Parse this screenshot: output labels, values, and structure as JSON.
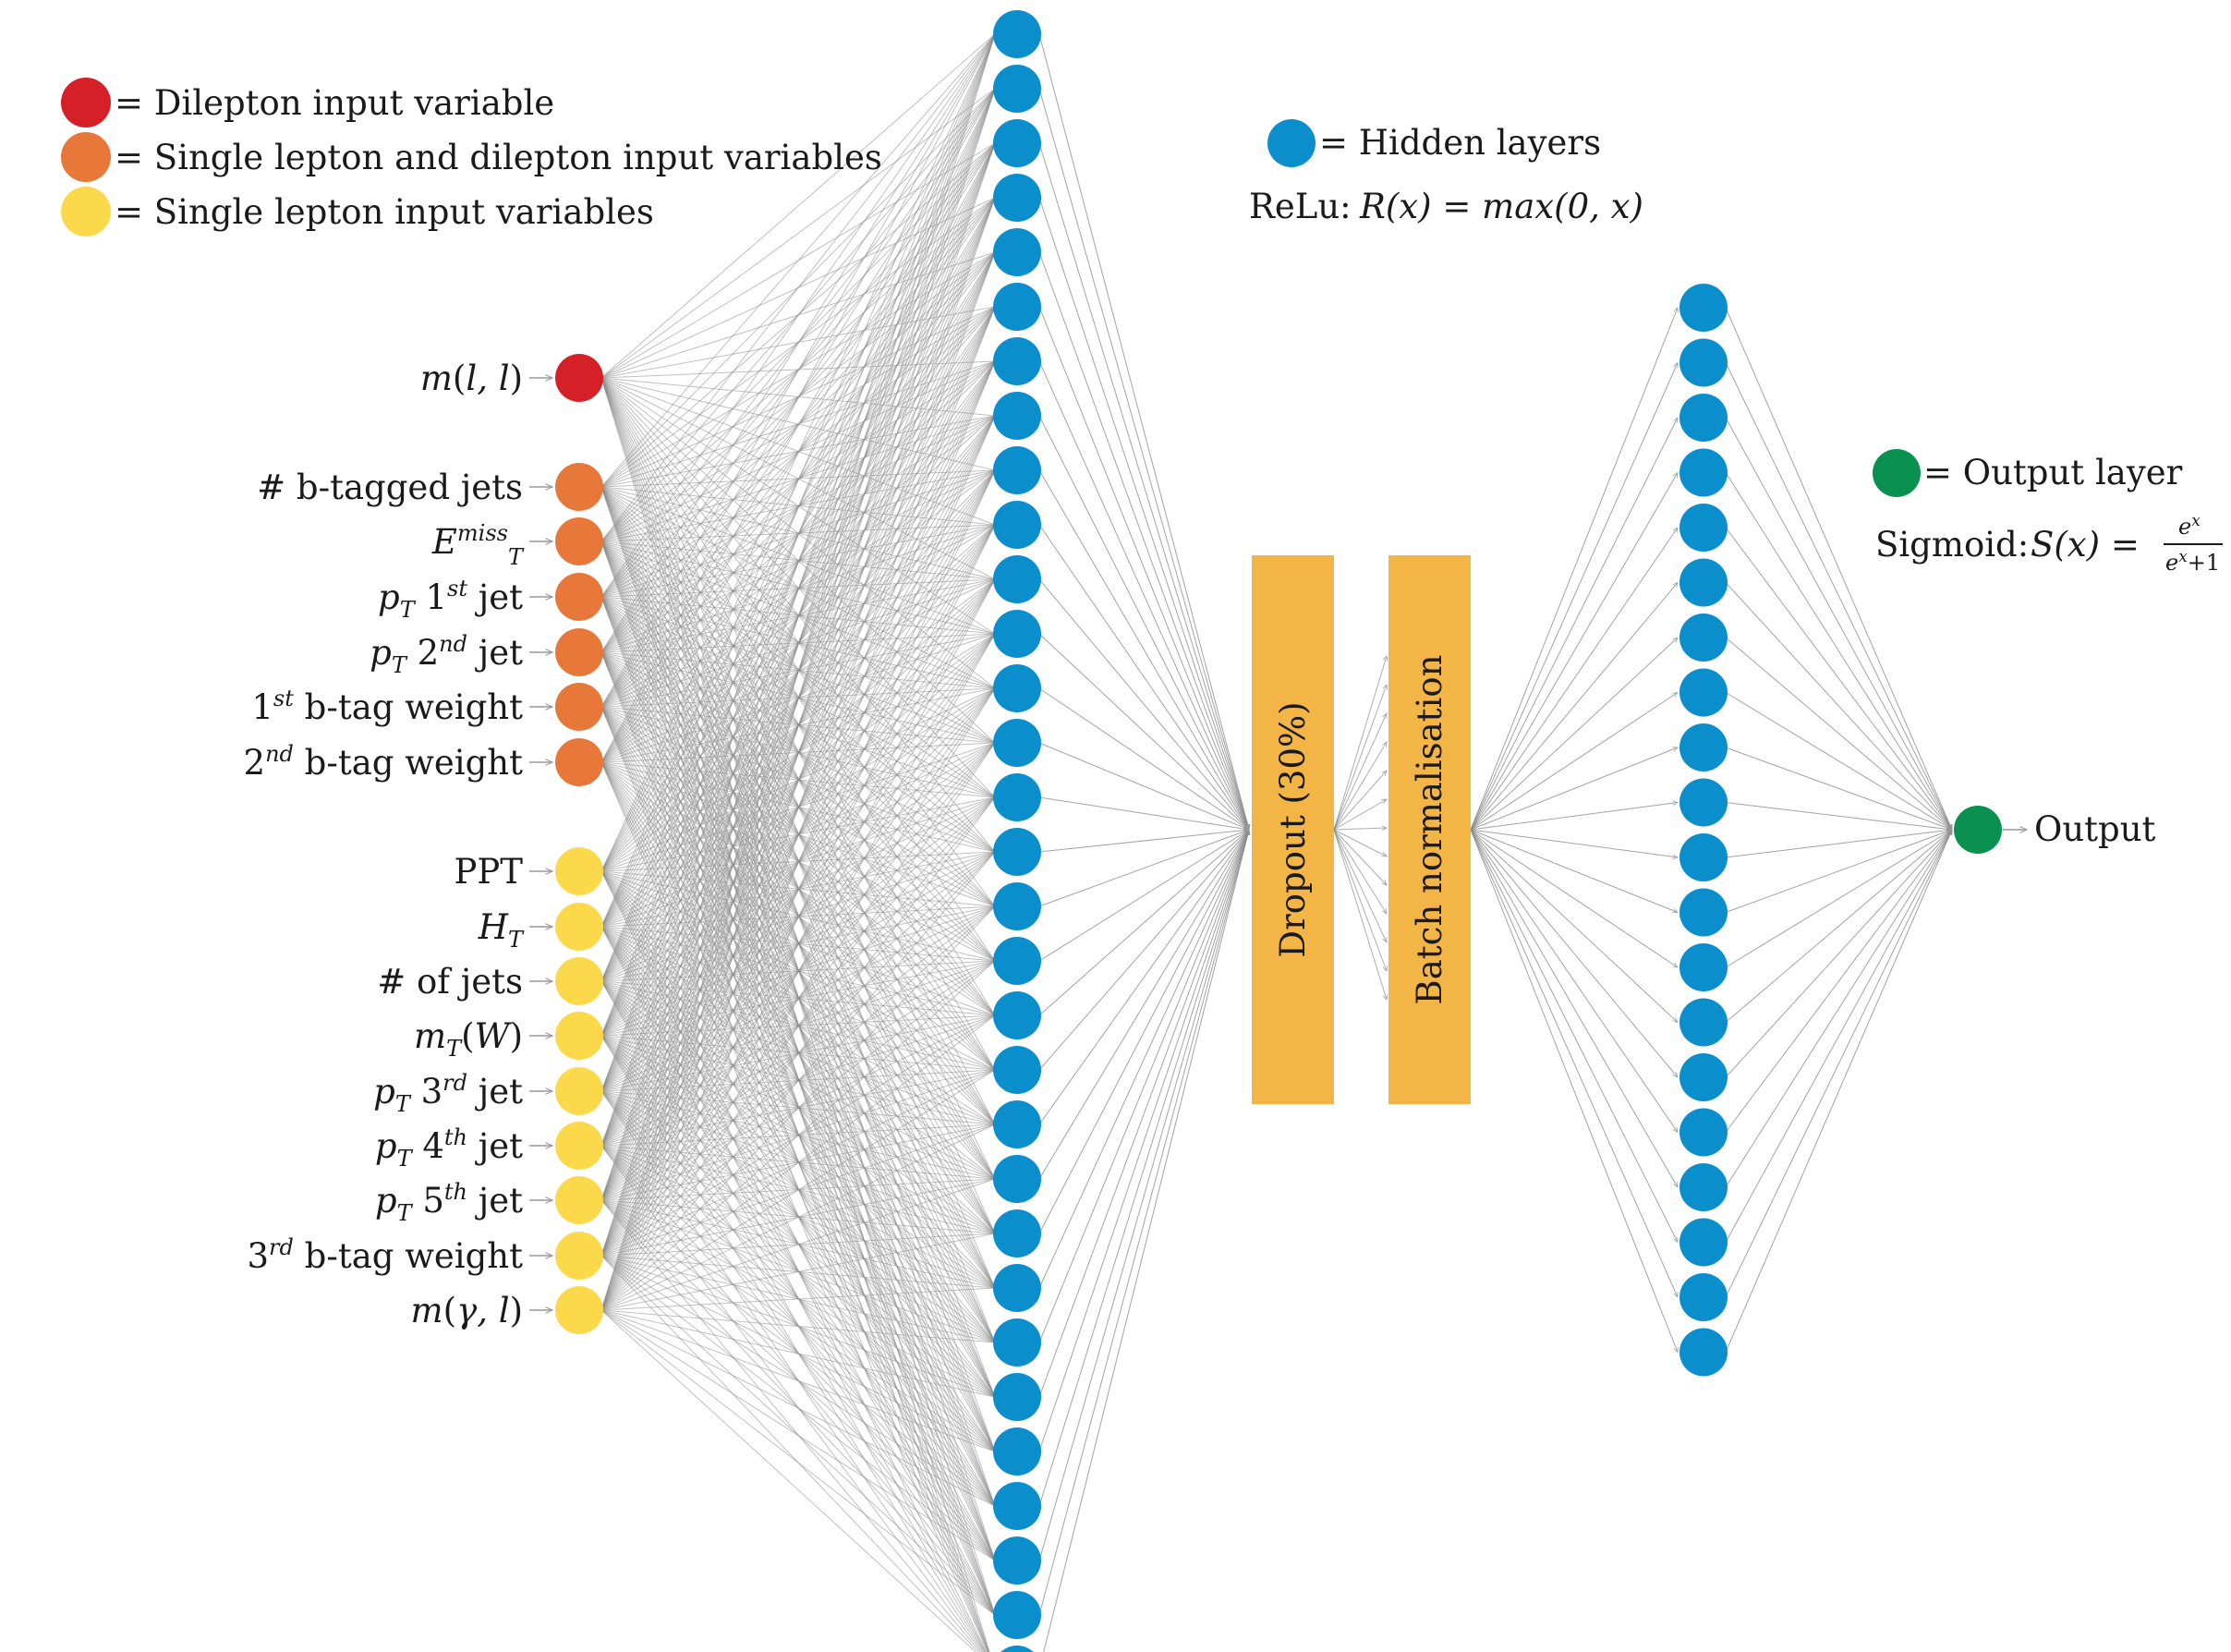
{
  "legend": {
    "dilepton": "= Dilepton input variable",
    "both": "= Single lepton and dilepton input variables",
    "single": "= Single lepton input variables",
    "hidden": "= Hidden layers",
    "relu_label": "ReLu:",
    "relu_formula": "R(x) = max(0, x)",
    "output_layer": "= Output layer",
    "sigmoid_label": "Sigmoid:",
    "sigmoid_lhs": "S(x) =",
    "sigmoid_num": "e",
    "sigmoid_num_sup": "x",
    "sigmoid_den": "e",
    "sigmoid_den_sup": "x",
    "sigmoid_den_tail": "+1"
  },
  "inputs": [
    {
      "parts": [
        {
          "t": "m",
          "s": "i"
        },
        {
          "t": "(",
          "s": ""
        },
        {
          "t": "l, l",
          "s": "i"
        },
        {
          "t": ")",
          "s": ""
        }
      ],
      "group": "dilepton"
    },
    {
      "parts": [
        {
          "t": "# b-tagged jets",
          "s": ""
        }
      ],
      "group": "both"
    },
    {
      "parts": [
        {
          "t": "E",
          "s": "i"
        },
        {
          "t": "miss",
          "s": "i sup"
        },
        {
          "t": "T",
          "s": "i subx"
        }
      ],
      "group": "both"
    },
    {
      "parts": [
        {
          "t": "p",
          "s": "i"
        },
        {
          "t": "T",
          "s": "i sub"
        },
        {
          "t": " 1",
          "s": ""
        },
        {
          "t": "st",
          "s": "i sup"
        },
        {
          "t": " jet",
          "s": ""
        }
      ],
      "group": "both"
    },
    {
      "parts": [
        {
          "t": "p",
          "s": "i"
        },
        {
          "t": "T",
          "s": "i sub"
        },
        {
          "t": " 2",
          "s": ""
        },
        {
          "t": "nd",
          "s": "i sup"
        },
        {
          "t": " jet",
          "s": ""
        }
      ],
      "group": "both"
    },
    {
      "parts": [
        {
          "t": "1",
          "s": ""
        },
        {
          "t": "st",
          "s": "i sup"
        },
        {
          "t": " b-tag weight",
          "s": ""
        }
      ],
      "group": "both"
    },
    {
      "parts": [
        {
          "t": "2",
          "s": ""
        },
        {
          "t": "nd",
          "s": "i sup"
        },
        {
          "t": " b-tag weight",
          "s": ""
        }
      ],
      "group": "both"
    },
    {
      "parts": [
        {
          "t": "PPT",
          "s": ""
        }
      ],
      "group": "single"
    },
    {
      "parts": [
        {
          "t": "H",
          "s": "i"
        },
        {
          "t": "T",
          "s": "i sub"
        }
      ],
      "group": "single"
    },
    {
      "parts": [
        {
          "t": "# of jets",
          "s": ""
        }
      ],
      "group": "single"
    },
    {
      "parts": [
        {
          "t": "m",
          "s": "i"
        },
        {
          "t": "T",
          "s": "i sub"
        },
        {
          "t": "(",
          "s": ""
        },
        {
          "t": "W",
          "s": "i"
        },
        {
          "t": ")",
          "s": ""
        }
      ],
      "group": "single"
    },
    {
      "parts": [
        {
          "t": "p",
          "s": "i"
        },
        {
          "t": "T",
          "s": "i sub"
        },
        {
          "t": " 3",
          "s": ""
        },
        {
          "t": "rd",
          "s": "i sup"
        },
        {
          "t": " jet",
          "s": ""
        }
      ],
      "group": "single"
    },
    {
      "parts": [
        {
          "t": "p",
          "s": "i"
        },
        {
          "t": "T",
          "s": "i sub"
        },
        {
          "t": " 4",
          "s": ""
        },
        {
          "t": "th",
          "s": "i sup"
        },
        {
          "t": " jet",
          "s": ""
        }
      ],
      "group": "single"
    },
    {
      "parts": [
        {
          "t": "p",
          "s": "i"
        },
        {
          "t": "T",
          "s": "i sub"
        },
        {
          "t": " 5",
          "s": ""
        },
        {
          "t": "th",
          "s": "i sup"
        },
        {
          "t": " jet",
          "s": ""
        }
      ],
      "group": "single"
    },
    {
      "parts": [
        {
          "t": "3",
          "s": ""
        },
        {
          "t": "rd",
          "s": "i sup"
        },
        {
          "t": " b-tag weight",
          "s": ""
        }
      ],
      "group": "single"
    },
    {
      "parts": [
        {
          "t": "m",
          "s": "i"
        },
        {
          "t": "(",
          "s": ""
        },
        {
          "t": "γ, l",
          "s": "i"
        },
        {
          "t": ")",
          "s": ""
        }
      ],
      "group": "single"
    }
  ],
  "hidden_layer_1_nodes": 31,
  "dropout_label": "Dropout (30%)",
  "batchnorm_label": "Batch normalisation",
  "hidden_layer_2_nodes": 20,
  "output_label": "Output",
  "colors": {
    "dilepton": "#d62027",
    "both": "#e8773a",
    "single": "#fcd94a",
    "hidden": "#0b8fcc",
    "output": "#0a9150",
    "block": "#f4b547",
    "connection": "#8c8c8c"
  }
}
